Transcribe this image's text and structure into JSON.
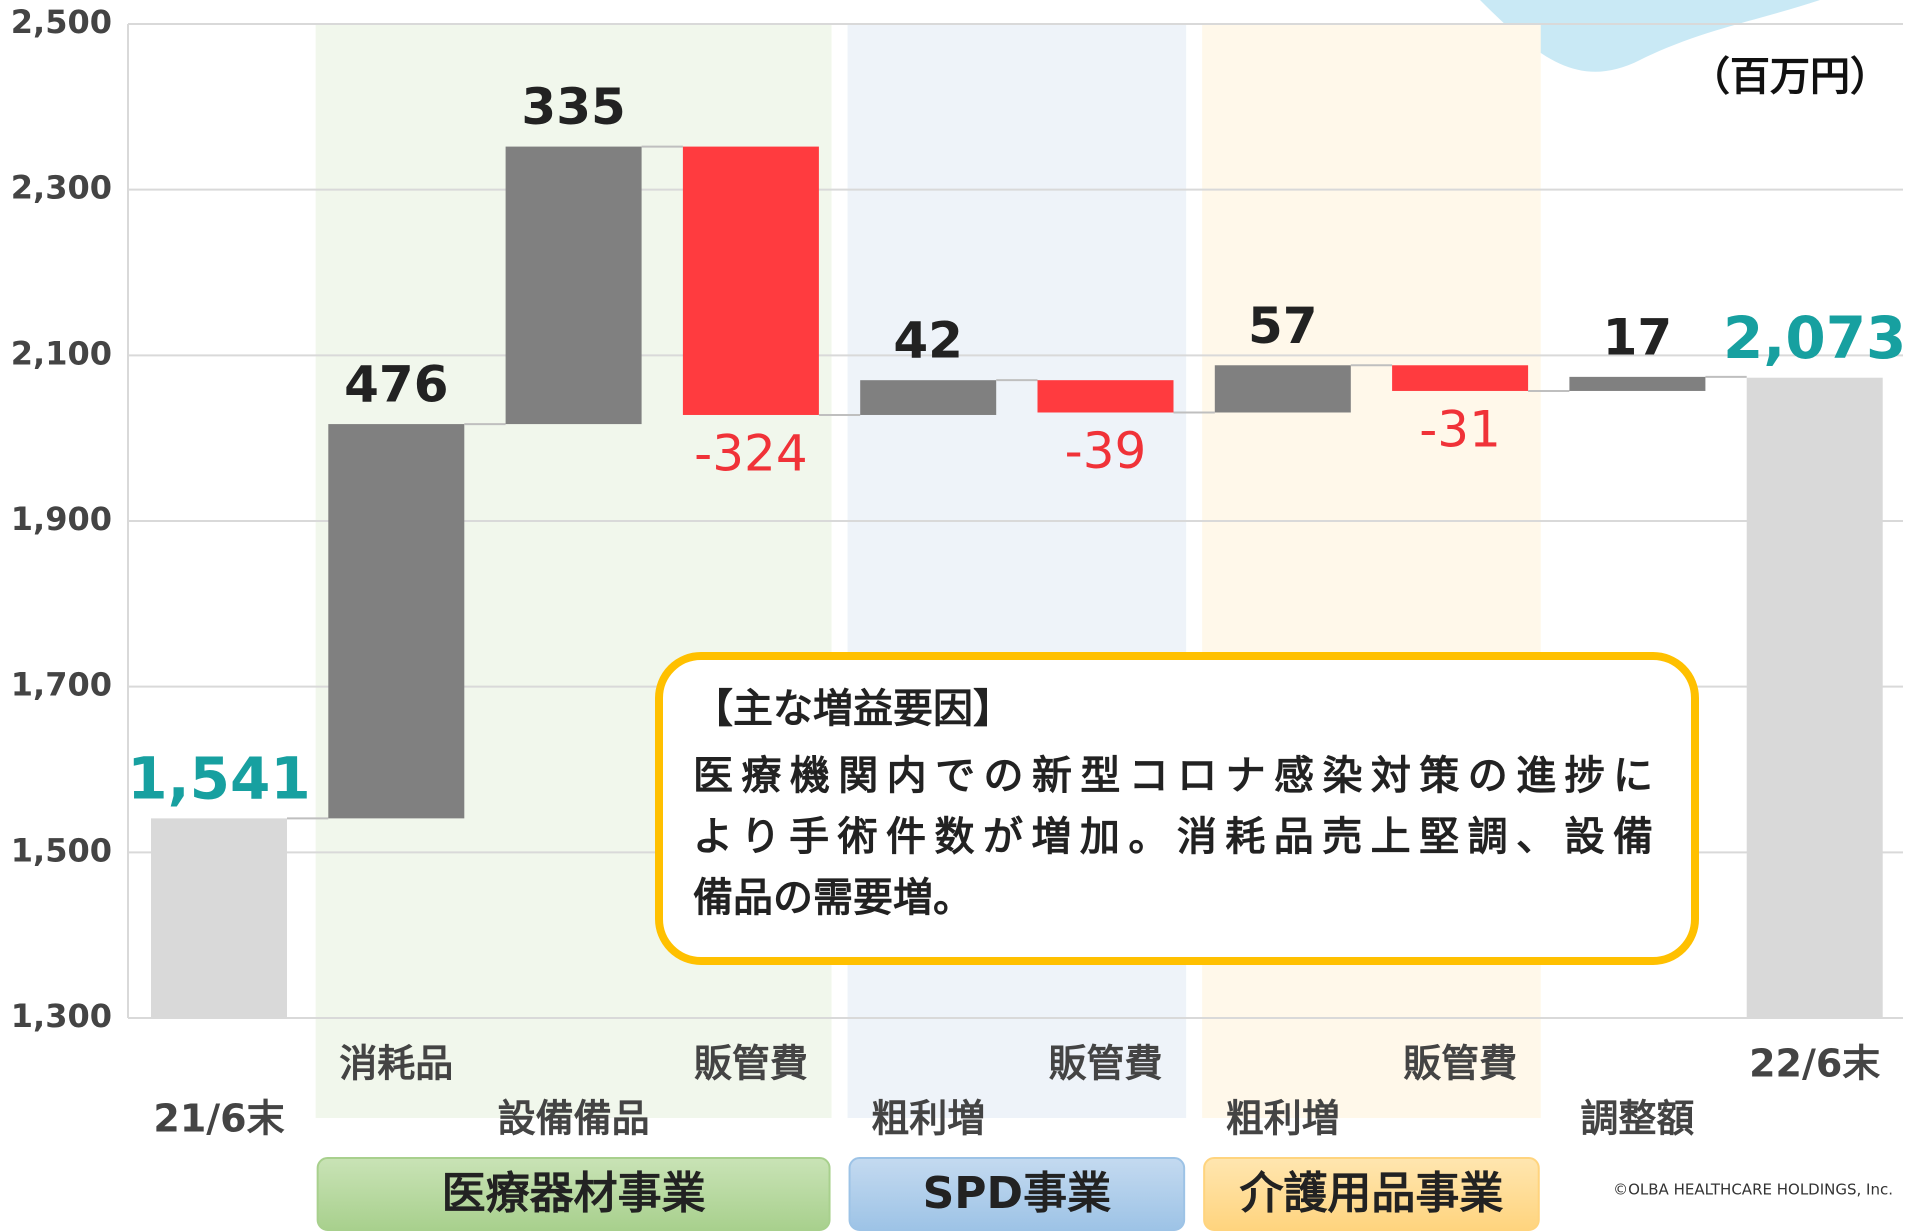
{
  "chart_data": {
    "type": "waterfall",
    "unit_label": "（百万円）",
    "categories": [
      "21/6末",
      "消耗品",
      "設備備品",
      "販管費",
      "粗利増",
      "販管費",
      "粗利増",
      "販管費",
      "調整額",
      "22/6末"
    ],
    "values": [
      1541,
      476,
      335,
      -324,
      42,
      -39,
      57,
      -31,
      17,
      2073
    ],
    "value_labels": [
      "1,541",
      "476",
      "335",
      "-324",
      "42",
      "-39",
      "57",
      "-31",
      "17",
      "2,073"
    ],
    "colors": {
      "total": "#d9d9d9",
      "increase": "#808080",
      "decrease": "#ff3b3f"
    },
    "ylim": [
      1300,
      2500
    ],
    "yticks": [
      {
        "value": 1300,
        "label": "1,300"
      },
      {
        "value": 1500,
        "label": "1,500"
      },
      {
        "value": 1700,
        "label": "1,700"
      },
      {
        "value": 1900,
        "label": "1,900"
      },
      {
        "value": 2100,
        "label": "2,100"
      },
      {
        "value": 2300,
        "label": "2,300"
      },
      {
        "value": 2500,
        "label": "2,500"
      }
    ],
    "grid": true,
    "segments": [
      "医療器材事業",
      "SPD事業",
      "介護用品事業"
    ],
    "annotation": {
      "title": "【主な増益要因】",
      "lines": [
        "医療機関内での新型コロナ感染対策の進捗に",
        "より手術件数が増加。消耗品売上堅調、設備",
        "備品の需要増。"
      ]
    },
    "copyright": "©OLBA HEALTHCARE HOLDINGS, Inc."
  }
}
